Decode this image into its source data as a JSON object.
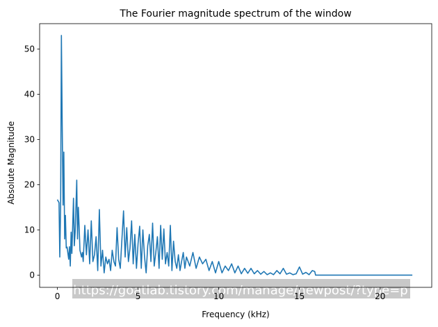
{
  "chart_data": {
    "type": "line",
    "title": "The Fourier magnitude spectrum of the window",
    "xlabel": "Frequency (kHz)",
    "ylabel": "Absolute Magnitude",
    "xlim": [
      -1.1,
      23.2
    ],
    "ylim": [
      -2.7,
      55.6
    ],
    "xticks": [
      0,
      5,
      10,
      15,
      20
    ],
    "yticks": [
      0,
      10,
      20,
      30,
      40,
      50
    ],
    "grid": false,
    "line_color": "#1f77b4",
    "watermark": "https://goatlab.tistory.com/manage/newpost/?type=p",
    "series": [
      {
        "x": [
          0.0,
          0.1,
          0.15,
          0.2,
          0.25,
          0.3,
          0.35,
          0.4,
          0.45,
          0.5,
          0.55,
          0.6,
          0.7,
          0.75,
          0.8,
          0.85,
          0.9,
          1.0,
          1.05,
          1.1,
          1.2,
          1.25,
          1.3,
          1.35,
          1.4,
          1.5,
          1.55,
          1.6,
          1.7,
          1.8,
          1.9,
          2.0,
          2.1,
          2.2,
          2.3,
          2.4,
          2.5,
          2.6,
          2.7,
          2.8,
          2.9,
          3.0,
          3.1,
          3.2,
          3.3,
          3.4,
          3.5,
          3.6,
          3.7,
          3.8,
          3.9,
          4.0,
          4.1,
          4.2,
          4.3,
          4.4,
          4.5,
          4.6,
          4.7,
          4.8,
          4.9,
          5.0,
          5.1,
          5.2,
          5.3,
          5.4,
          5.5,
          5.6,
          5.7,
          5.8,
          5.9,
          6.0,
          6.1,
          6.2,
          6.3,
          6.4,
          6.5,
          6.6,
          6.7,
          6.8,
          6.9,
          7.0,
          7.1,
          7.2,
          7.3,
          7.4,
          7.5,
          7.6,
          7.7,
          7.8,
          7.9,
          8.0,
          8.2,
          8.4,
          8.6,
          8.8,
          9.0,
          9.2,
          9.4,
          9.6,
          9.8,
          10.0,
          10.2,
          10.4,
          10.6,
          10.8,
          11.0,
          11.2,
          11.4,
          11.6,
          11.8,
          12.0,
          12.2,
          12.4,
          12.6,
          12.8,
          13.0,
          13.2,
          13.4,
          13.6,
          13.8,
          14.0,
          14.2,
          14.4,
          14.6,
          14.8,
          15.0,
          15.2,
          15.4,
          15.6,
          15.8,
          15.95,
          16.0,
          17.0,
          18.0,
          19.0,
          20.0,
          21.0,
          22.0
        ],
        "values": [
          16.7,
          16.0,
          4.0,
          15.0,
          53.0,
          33.0,
          15.5,
          27.2,
          8.0,
          13.2,
          6.0,
          6.2,
          3.5,
          6.3,
          2.0,
          9.5,
          4.8,
          17.0,
          6.5,
          9.5,
          21.0,
          8.0,
          15.0,
          10.5,
          5.5,
          4.0,
          5.0,
          3.0,
          11.0,
          4.5,
          10.0,
          2.5,
          12.0,
          3.0,
          4.5,
          8.5,
          1.0,
          14.5,
          2.0,
          5.5,
          0.5,
          4.0,
          2.5,
          3.5,
          1.0,
          5.5,
          3.0,
          2.0,
          10.5,
          3.5,
          1.5,
          8.0,
          14.2,
          4.0,
          10.5,
          3.0,
          6.0,
          12.0,
          2.5,
          9.0,
          1.5,
          7.0,
          10.8,
          1.5,
          10.0,
          4.0,
          0.5,
          6.5,
          9.0,
          3.0,
          11.5,
          2.0,
          5.0,
          8.5,
          1.5,
          11.0,
          3.5,
          10.2,
          2.5,
          5.0,
          2.0,
          11.0,
          1.0,
          7.5,
          3.0,
          1.5,
          4.5,
          1.0,
          3.0,
          5.0,
          1.5,
          4.0,
          2.0,
          5.0,
          1.5,
          4.0,
          2.5,
          3.5,
          1.0,
          3.0,
          0.5,
          3.0,
          0.5,
          2.0,
          1.0,
          2.5,
          0.5,
          2.0,
          0.3,
          1.5,
          0.4,
          1.5,
          0.3,
          1.0,
          0.2,
          0.8,
          0.1,
          0.5,
          0.1,
          1.0,
          0.3,
          1.5,
          0.2,
          0.5,
          0.1,
          0.3,
          1.8,
          0.2,
          0.6,
          0.1,
          1.0,
          0.8,
          0.0,
          0.0,
          0.0,
          0.0,
          0.0,
          0.0,
          0.0
        ]
      }
    ]
  }
}
